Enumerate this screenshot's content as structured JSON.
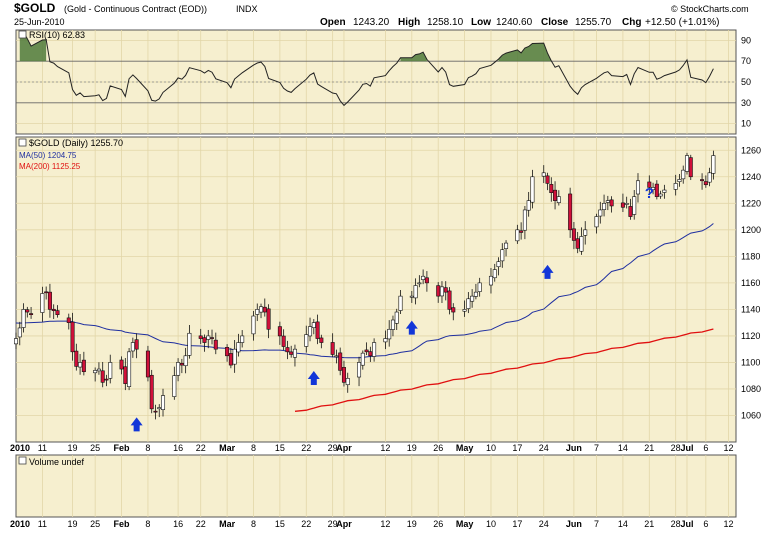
{
  "header": {
    "symbol": "$GOLD",
    "name": "(Gold - Continuous Contract (EOD))",
    "exchange": "INDX",
    "date": "25-Jun-2010",
    "open_label": "Open",
    "open": "1243.20",
    "high_label": "High",
    "high": "1258.10",
    "low_label": "Low",
    "low": "1240.60",
    "close_label": "Close",
    "close": "1255.70",
    "chg_label": "Chg",
    "chg": "+12.50 (+1.01%)",
    "watermark": "© StockCharts.com"
  },
  "colors": {
    "background": "#f6efcf",
    "up_candle": "#ffffff",
    "down_candle": "#d0103a",
    "ma50": "#1f2fa0",
    "ma200": "#e01010",
    "rsi_line": "#222222",
    "rsi_overbought_fill": "#4f7a3a",
    "arrow": "#1236d8"
  },
  "rsi_panel": {
    "legend": "RSI(10) 62.83",
    "ticks": [
      "90",
      "70",
      "50",
      "30",
      "10"
    ]
  },
  "price_panel": {
    "legend": "$GOLD (Daily) 1255.70",
    "ma50_legend": "MA(50) 1204.75",
    "ma200_legend": "MA(200) 1125.25",
    "annotation": "?"
  },
  "volume_panel": {
    "legend": "Volume undef"
  },
  "x_axis": {
    "labels": [
      "2010",
      "11",
      "19",
      "25",
      "Feb",
      "8",
      "16",
      "22",
      "Mar",
      "8",
      "15",
      "22",
      "29",
      "Apr",
      "12",
      "19",
      "26",
      "May",
      "10",
      "17",
      "24",
      "Jun",
      "7",
      "14",
      "21",
      "28",
      "Jul",
      "6",
      "12"
    ]
  },
  "chart_data": {
    "type": "candlestick",
    "title": "$GOLD (Gold - Continuous Contract (EOD)) INDX",
    "y_ticks": [
      1060,
      1080,
      1100,
      1120,
      1140,
      1160,
      1180,
      1200,
      1220,
      1240,
      1260
    ],
    "ylim": [
      1040,
      1270
    ],
    "x_range": [
      "2010-01-04",
      "2010-07-14"
    ],
    "close": [
      1118,
      1126,
      1140,
      1138,
      1136,
      1152,
      1153,
      1140,
      1139,
      1136,
      1130,
      1108,
      1097,
      1100,
      1093,
      1094,
      1095,
      1085,
      1087,
      1100,
      1095,
      1084,
      1108,
      1115,
      1110,
      1089,
      1065,
      1063,
      1066,
      1075,
      1090,
      1100,
      1098,
      1105,
      1122,
      1118,
      1115,
      1120,
      1118,
      1110,
      1105,
      1098,
      1110,
      1115,
      1120,
      1135,
      1140,
      1142,
      1138,
      1125,
      1120,
      1112,
      1108,
      1106,
      1110,
      1121,
      1127,
      1130,
      1118,
      1115,
      1106,
      1105,
      1094,
      1085,
      1088,
      1100,
      1107,
      1108,
      1105,
      1115,
      1118,
      1125,
      1132,
      1138,
      1150,
      1150,
      1158,
      1160,
      1165,
      1160,
      1150,
      1157,
      1153,
      1140,
      1138,
      1140,
      1148,
      1150,
      1153,
      1160,
      1165,
      1170,
      1176,
      1185,
      1190,
      1200,
      1198,
      1215,
      1222,
      1240,
      1243,
      1235,
      1228,
      1222,
      1225,
      1200,
      1192,
      1186,
      1195,
      1200,
      1210,
      1215,
      1220,
      1222,
      1218,
      1217,
      1220,
      1210,
      1225,
      1237,
      1232,
      1232,
      1225,
      1227,
      1230,
      1235,
      1238,
      1245,
      1256,
      1240,
      1237,
      1234,
      1243,
      1256
    ],
    "ma50_legend_value": 1204.75,
    "ma200_legend_value": 1125.25,
    "rsi_last": 62.83,
    "rsi_ylim": [
      0,
      100
    ],
    "rsi_ticks": [
      10,
      30,
      50,
      70,
      90
    ],
    "annotations": [
      {
        "type": "up-arrow",
        "date": "2010-02-05",
        "price": 1048
      },
      {
        "type": "up-arrow",
        "date": "2010-03-24",
        "price": 1083
      },
      {
        "type": "up-arrow",
        "date": "2010-04-19",
        "price": 1121
      },
      {
        "type": "up-arrow",
        "date": "2010-05-25",
        "price": 1163
      },
      {
        "type": "text",
        "text": "?",
        "date": "2010-06-21",
        "price": 1224
      }
    ]
  }
}
